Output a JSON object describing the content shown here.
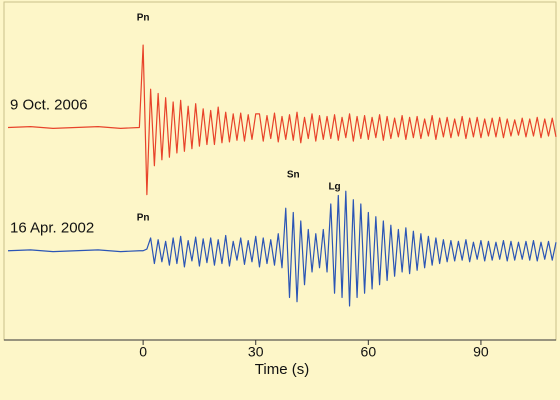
{
  "chart_data": {
    "type": "line",
    "xlabel": "Time (s)",
    "xlim": [
      -36,
      110
    ],
    "xticks": [
      0,
      30,
      60,
      90
    ],
    "ylim": [
      -2,
      2
    ],
    "x": [
      -36,
      -30,
      -24,
      -18,
      -12,
      -6,
      -1,
      0,
      1,
      2,
      3,
      4,
      5,
      6,
      7,
      8,
      9,
      10,
      11,
      12,
      13,
      14,
      15,
      16,
      17,
      18,
      19,
      20,
      21,
      22,
      23,
      24,
      25,
      26,
      27,
      28,
      29,
      30,
      31,
      32,
      33,
      34,
      35,
      36,
      37,
      38,
      39,
      40,
      41,
      42,
      43,
      44,
      45,
      46,
      47,
      48,
      49,
      50,
      51,
      52,
      53,
      54,
      55,
      56,
      57,
      58,
      59,
      60,
      61,
      62,
      63,
      64,
      65,
      66,
      67,
      68,
      69,
      70,
      71,
      72,
      73,
      74,
      75,
      76,
      77,
      78,
      79,
      80,
      81,
      82,
      83,
      84,
      85,
      86,
      87,
      88,
      89,
      90,
      91,
      92,
      93,
      94,
      95,
      96,
      97,
      98,
      99,
      100,
      101,
      102,
      103,
      104,
      105,
      106,
      107,
      108,
      109,
      110
    ],
    "series": [
      {
        "name": "9 Oct. 2006",
        "color": "#e8432a",
        "values": [
          0.5,
          0.51,
          0.49,
          0.5,
          0.51,
          0.49,
          0.5,
          1.47,
          -0.29,
          0.95,
          0.05,
          0.9,
          0.12,
          0.85,
          0.15,
          0.8,
          0.2,
          0.82,
          0.22,
          0.75,
          0.25,
          0.78,
          0.28,
          0.72,
          0.3,
          0.7,
          0.3,
          0.74,
          0.32,
          0.68,
          0.33,
          0.66,
          0.35,
          0.67,
          0.34,
          0.65,
          0.36,
          0.66,
          0.66,
          0.34,
          0.64,
          0.37,
          0.67,
          0.33,
          0.63,
          0.36,
          0.65,
          0.35,
          0.68,
          0.32,
          0.62,
          0.37,
          0.66,
          0.34,
          0.64,
          0.36,
          0.63,
          0.37,
          0.65,
          0.35,
          0.62,
          0.38,
          0.66,
          0.34,
          0.63,
          0.37,
          0.64,
          0.36,
          0.62,
          0.38,
          0.65,
          0.35,
          0.63,
          0.37,
          0.61,
          0.39,
          0.64,
          0.36,
          0.62,
          0.38,
          0.63,
          0.37,
          0.6,
          0.4,
          0.64,
          0.36,
          0.61,
          0.39,
          0.62,
          0.38,
          0.6,
          0.4,
          0.63,
          0.37,
          0.61,
          0.39,
          0.62,
          0.38,
          0.6,
          0.4,
          0.61,
          0.39,
          0.62,
          0.38,
          0.6,
          0.4,
          0.59,
          0.41,
          0.61,
          0.39,
          0.6,
          0.4,
          0.62,
          0.38,
          0.6,
          0.4,
          0.61,
          0.39
        ]
      },
      {
        "name": "16 Apr. 2002",
        "color": "#2b55b5",
        "values": [
          -0.95,
          -0.94,
          -0.96,
          -0.95,
          -0.94,
          -0.96,
          -0.95,
          -0.95,
          -0.93,
          -0.8,
          -1.1,
          -0.82,
          -1.08,
          -0.84,
          -1.12,
          -0.8,
          -1.1,
          -0.78,
          -1.14,
          -0.83,
          -1.07,
          -0.79,
          -1.13,
          -0.81,
          -1.09,
          -0.8,
          -1.12,
          -0.82,
          -1.1,
          -0.77,
          -1.13,
          -0.84,
          -1.06,
          -0.8,
          -1.11,
          -0.83,
          -1.08,
          -0.78,
          -1.14,
          -0.8,
          -1.1,
          -0.82,
          -1.12,
          -0.75,
          -1.15,
          -0.45,
          -1.5,
          -0.5,
          -1.55,
          -0.6,
          -1.35,
          -0.7,
          -1.2,
          -0.75,
          -1.15,
          -0.7,
          -1.2,
          -0.4,
          -1.45,
          -0.3,
          -1.5,
          -0.25,
          -1.6,
          -0.35,
          -1.5,
          -0.4,
          -1.45,
          -0.5,
          -1.4,
          -0.55,
          -1.35,
          -0.6,
          -1.3,
          -0.65,
          -1.25,
          -0.7,
          -1.2,
          -0.68,
          -1.22,
          -0.72,
          -1.18,
          -0.75,
          -1.15,
          -0.78,
          -1.12,
          -0.8,
          -1.1,
          -0.82,
          -1.08,
          -0.83,
          -1.07,
          -0.84,
          -1.06,
          -0.82,
          -1.08,
          -0.85,
          -1.05,
          -0.83,
          -1.07,
          -0.84,
          -1.06,
          -0.85,
          -1.05,
          -0.83,
          -1.07,
          -0.84,
          -1.06,
          -0.85,
          -1.05,
          -0.84,
          -1.06,
          -0.83,
          -1.07,
          -0.85,
          -1.05,
          -0.84,
          -1.06,
          -0.85
        ]
      }
    ],
    "annotations": [
      {
        "text": "Pn",
        "x": 0
      },
      {
        "text": "Pn",
        "x": 0
      },
      {
        "text": "Sn",
        "x": 40
      },
      {
        "text": "Lg",
        "x": 51
      }
    ]
  }
}
